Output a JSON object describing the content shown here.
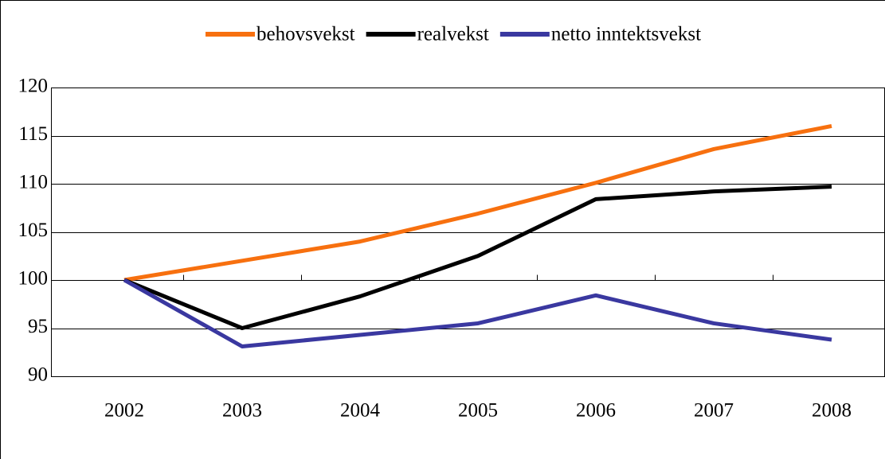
{
  "chart_data": {
    "type": "line",
    "categories": [
      "2002",
      "2003",
      "2004",
      "2005",
      "2006",
      "2007",
      "2008"
    ],
    "series": [
      {
        "name": "behovsvekst",
        "color": "#f7700f",
        "values": [
          100,
          102.0,
          104.0,
          106.9,
          110.1,
          113.6,
          116.0
        ]
      },
      {
        "name": "realvekst",
        "color": "#000000",
        "values": [
          100,
          95.0,
          98.3,
          102.5,
          108.4,
          109.2,
          109.7
        ]
      },
      {
        "name": "netto inntektsvekst",
        "color": "#3a38a0",
        "values": [
          100,
          93.1,
          94.3,
          95.5,
          98.4,
          95.5,
          93.8
        ]
      }
    ],
    "ylim": [
      90,
      120
    ],
    "yticks": [
      90,
      95,
      100,
      105,
      110,
      115,
      120
    ],
    "grid": true,
    "legend": "top"
  }
}
